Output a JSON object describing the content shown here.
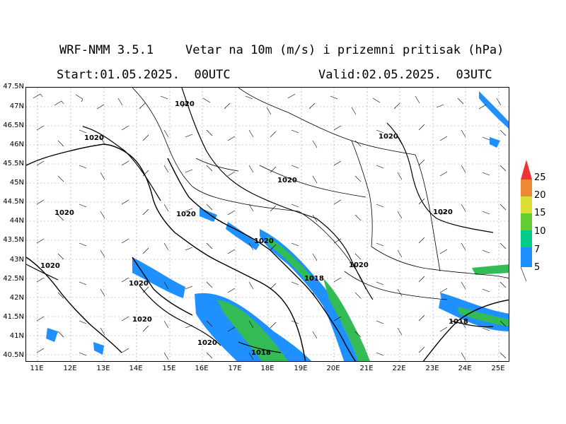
{
  "header": {
    "model": "WRF-NMM 3.5.1",
    "field": "Vetar na 10m (m/s) i prizemni pritisak (hPa)",
    "start": "Start:01.05.2025.  00UTC",
    "valid": "Valid:02.05.2025.  03UTC"
  },
  "axes": {
    "lat_labels": [
      "47.5N",
      "47N",
      "46.5N",
      "46N",
      "45.5N",
      "45N",
      "44.5N",
      "44N",
      "43.5N",
      "43N",
      "42.5N",
      "42N",
      "41.5N",
      "41N",
      "40.5N"
    ],
    "lon_labels": [
      "11E",
      "12E",
      "13E",
      "14E",
      "15E",
      "16E",
      "17E",
      "18E",
      "19E",
      "20E",
      "21E",
      "22E",
      "23E",
      "24E",
      "25E"
    ]
  },
  "legend": {
    "levels": [
      "5",
      "7",
      "10",
      "15",
      "20",
      "25"
    ],
    "colors": [
      "#1e90ff",
      "#00cc88",
      "#66cc33",
      "#dddd33",
      "#ee8833",
      "#ee3333"
    ]
  },
  "isobar_labels": [
    {
      "text": "1020"
    },
    {
      "text": "1020"
    },
    {
      "text": "1020"
    },
    {
      "text": "1020"
    },
    {
      "text": "1020"
    },
    {
      "text": "1020"
    },
    {
      "text": "1020"
    },
    {
      "text": "1020"
    },
    {
      "text": "1020"
    },
    {
      "text": "1020"
    },
    {
      "text": "1020"
    },
    {
      "text": "1020"
    },
    {
      "text": "1020"
    },
    {
      "text": "1018"
    },
    {
      "text": "1018"
    },
    {
      "text": "1018"
    }
  ],
  "colors": {
    "wind_blue": "#1e90ff",
    "wind_green": "#33bb55",
    "wind_lightgreen": "#66cc33",
    "grid": "#999999"
  }
}
